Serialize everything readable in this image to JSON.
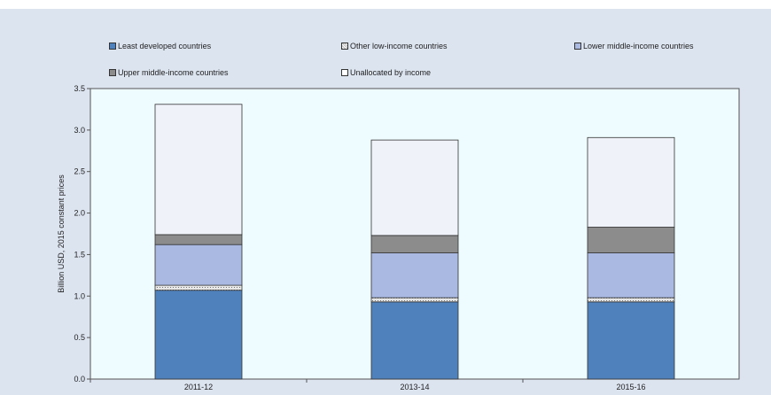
{
  "chart_data": {
    "type": "bar",
    "stacked": true,
    "categories": [
      "2011-12",
      "2013-14",
      "2015-16"
    ],
    "series": [
      {
        "name": "Least developed countries",
        "color": "#4f81bd",
        "values": [
          1.07,
          0.93,
          0.93
        ]
      },
      {
        "name": "Other low-income countries",
        "color": "#c6c6c6",
        "pattern": "dotted",
        "values": [
          0.06,
          0.05,
          0.05
        ]
      },
      {
        "name": "Lower middle-income countries",
        "color": "#a9b9e1",
        "values": [
          0.49,
          0.54,
          0.54
        ]
      },
      {
        "name": "Upper middle-income countries",
        "color": "#8c8c8c",
        "values": [
          0.12,
          0.21,
          0.31
        ]
      },
      {
        "name": "Unallocated by income",
        "color": "#f0f2fa",
        "values": [
          1.57,
          1.15,
          1.08
        ]
      }
    ],
    "ylabel": "Billion USD, 2015 constant prices",
    "ylim": [
      0,
      3.5
    ],
    "yticks": [
      "0.0",
      "0.5",
      "1.0",
      "1.5",
      "2.0",
      "2.5",
      "3.0",
      "3.5"
    ],
    "legend_position": "top",
    "grid": false
  }
}
